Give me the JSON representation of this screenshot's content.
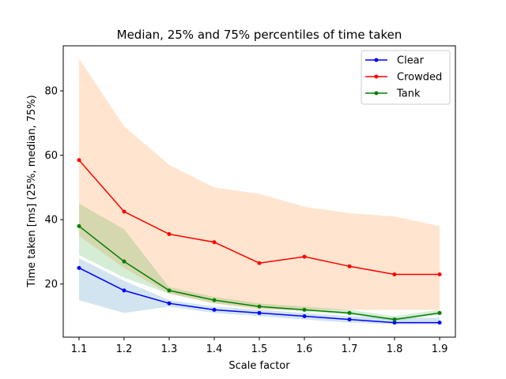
{
  "chart_data": {
    "type": "line",
    "title": "Median, 25% and 75% percentiles of time taken",
    "xlabel": "Scale factor",
    "ylabel": "Time taken [ms] (25%, median, 75%)",
    "x": [
      1.1,
      1.2,
      1.3,
      1.4,
      1.5,
      1.6,
      1.7,
      1.8,
      1.9
    ],
    "xlim": [
      1.065,
      1.935
    ],
    "ylim": [
      3.5,
      94
    ],
    "xticks": [
      {
        "value": 1.1,
        "label": "1.1"
      },
      {
        "value": 1.2,
        "label": "1.2"
      },
      {
        "value": 1.3,
        "label": "1.3"
      },
      {
        "value": 1.4,
        "label": "1.4"
      },
      {
        "value": 1.5,
        "label": "1.5"
      },
      {
        "value": 1.6,
        "label": "1.6"
      },
      {
        "value": 1.7,
        "label": "1.7"
      },
      {
        "value": 1.8,
        "label": "1.8"
      },
      {
        "value": 1.9,
        "label": "1.9"
      }
    ],
    "yticks": [
      {
        "value": 20,
        "label": "20"
      },
      {
        "value": 40,
        "label": "40"
      },
      {
        "value": 60,
        "label": "60"
      },
      {
        "value": 80,
        "label": "80"
      }
    ],
    "grid": false,
    "legend_position": "top-right",
    "series": [
      {
        "name": "Clear",
        "color": "#0000ff",
        "band_color": "#1f77b4",
        "median": [
          25,
          18,
          14,
          12,
          11,
          10,
          9,
          8,
          8
        ],
        "p25": [
          15,
          11,
          13,
          11,
          10,
          9,
          8,
          7.5,
          7.5
        ],
        "p75": [
          28,
          21,
          15,
          13,
          12,
          11,
          10,
          9.5,
          9.5
        ]
      },
      {
        "name": "Crowded",
        "color": "#ff0000",
        "band_color": "#ff7f0e",
        "median": [
          58.5,
          42.5,
          35.5,
          33,
          26.5,
          28.5,
          25.5,
          23,
          23
        ],
        "p25": [
          35,
          25,
          17,
          14,
          12,
          12,
          12,
          12,
          12
        ],
        "p75": [
          90,
          69,
          57,
          50,
          48,
          44,
          42,
          41,
          38
        ]
      },
      {
        "name": "Tank",
        "color": "#008000",
        "band_color": "#2ca02c",
        "median": [
          38,
          27,
          18,
          15,
          13,
          12,
          11,
          9,
          11
        ],
        "p25": [
          29,
          22,
          17,
          14,
          12.5,
          11.5,
          10.5,
          8.5,
          10.5
        ],
        "p75": [
          45,
          37,
          19,
          16,
          14,
          13,
          12,
          10,
          12
        ]
      }
    ]
  }
}
